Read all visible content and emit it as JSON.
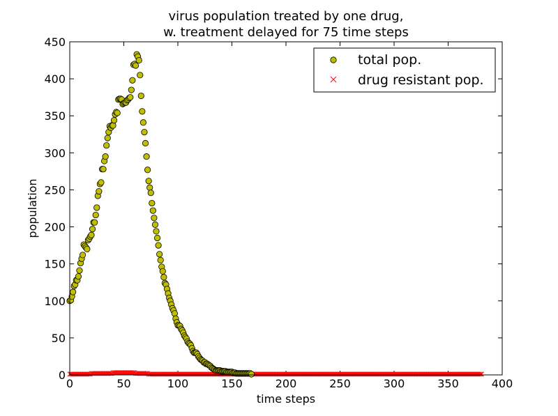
{
  "chart_data": {
    "type": "scatter",
    "title_line1": "virus population treated by one drug,",
    "title_line2": "w. treatment delayed for 75 time steps",
    "xlabel": "time steps",
    "ylabel": "population",
    "xlim": [
      0,
      400
    ],
    "ylim": [
      0,
      450
    ],
    "xticks": [
      "0",
      "50",
      "100",
      "150",
      "200",
      "250",
      "300",
      "350",
      "400"
    ],
    "yticks": [
      "0",
      "50",
      "100",
      "150",
      "200",
      "250",
      "300",
      "350",
      "400",
      "450"
    ],
    "grid": false,
    "legend_position": "top-right",
    "x_step": 1,
    "colors": {
      "total": "#bfbf00",
      "resistant": "#ff0000",
      "axes": "#000000"
    },
    "series": [
      {
        "name": "total pop.",
        "marker": "circle",
        "values": [
          100,
          101,
          106,
          112,
          120,
          122,
          128,
          128,
          133,
          141,
          151,
          157,
          162,
          176,
          174,
          172,
          170,
          182,
          184,
          187,
          189,
          197,
          206,
          206,
          216,
          226,
          242,
          248,
          258,
          260,
          278,
          278,
          289,
          295,
          310,
          320,
          328,
          336,
          334,
          337,
          337,
          344,
          352,
          355,
          354,
          372,
          373,
          373,
          372,
          366,
          367,
          368,
          368,
          371,
          372,
          374,
          375,
          385,
          398,
          419,
          420,
          418,
          433,
          430,
          425,
          405,
          377,
          356,
          341,
          328,
          313,
          295,
          277,
          262,
          253,
          246,
          232,
          222,
          212,
          203,
          194,
          185,
          175,
          163,
          155,
          146,
          140,
          132,
          124,
          122,
          116,
          110,
          104,
          100,
          95,
          90,
          87,
          83,
          76,
          71,
          67,
          67,
          66,
          62,
          60,
          57,
          53,
          51,
          49,
          45,
          43,
          42,
          40,
          36,
          32,
          30,
          30,
          30,
          28,
          25,
          23,
          21,
          20,
          19,
          17,
          17,
          15,
          15,
          14,
          13,
          12,
          10,
          9,
          8,
          7,
          6,
          6,
          6,
          6,
          6,
          5,
          5,
          5,
          5,
          5,
          4,
          4,
          4,
          4,
          4,
          4,
          3,
          3,
          3,
          2,
          2,
          2,
          2,
          2,
          2,
          2,
          2,
          2,
          2,
          2,
          2,
          2,
          2,
          1
        ]
      },
      {
        "name": "drug resistant pop.",
        "marker": "x",
        "values": [
          1,
          1,
          1,
          1,
          1,
          1,
          1,
          1,
          1,
          1,
          1,
          1,
          1,
          1,
          1,
          1,
          1,
          1,
          1,
          1,
          2,
          2,
          2,
          2,
          2,
          2,
          2,
          2,
          2,
          2,
          2,
          2,
          2,
          2,
          2,
          2,
          2,
          2,
          2,
          2,
          3,
          3,
          3,
          3,
          3,
          3,
          3,
          3,
          3,
          3,
          3,
          3,
          3,
          3,
          3,
          3,
          3,
          3,
          3,
          3,
          3,
          2,
          2,
          2,
          2,
          2,
          2,
          2,
          2,
          2,
          2,
          2,
          2,
          1,
          1,
          1,
          1,
          1,
          1,
          1,
          1,
          1,
          1,
          1,
          1,
          1,
          1,
          1,
          1,
          1,
          1,
          1,
          1,
          1,
          1,
          1,
          1,
          1,
          1,
          1,
          1,
          1,
          1,
          1,
          1,
          1,
          1,
          1,
          1,
          1,
          1,
          1,
          1,
          1,
          1,
          1,
          1,
          1,
          1,
          1,
          1,
          1,
          1,
          1,
          1,
          1,
          1,
          1,
          1,
          1,
          1,
          1,
          1,
          1,
          1,
          1,
          1,
          1,
          1,
          1,
          1,
          1,
          1,
          1,
          1,
          1,
          1,
          1,
          1,
          1,
          1,
          1,
          1,
          1,
          1,
          1,
          1,
          1,
          1,
          1,
          1,
          1,
          1,
          1,
          1,
          1,
          1,
          1,
          1,
          1,
          1,
          1,
          1,
          1,
          1,
          1,
          1,
          1,
          1,
          1,
          1,
          1,
          1,
          1,
          1,
          1,
          1,
          1,
          1,
          1,
          1,
          1,
          1,
          1,
          1,
          1,
          1,
          1,
          1,
          1,
          1,
          1,
          1,
          1,
          1,
          1,
          1,
          1,
          1,
          1,
          1,
          1,
          1,
          1,
          1,
          1,
          1,
          1,
          1,
          1,
          1,
          1,
          1,
          1,
          1,
          1,
          1,
          1,
          1,
          1,
          1,
          1,
          1,
          1,
          1,
          1,
          1,
          1,
          1,
          1,
          1,
          1,
          1,
          1,
          1,
          1,
          1,
          1,
          1,
          1,
          1,
          1,
          1,
          1,
          1,
          1,
          1,
          1,
          1,
          1,
          1,
          1,
          1,
          1,
          1,
          1,
          1,
          1,
          1,
          1,
          1,
          1,
          1,
          1,
          1,
          1,
          1,
          1,
          1,
          1,
          1,
          1,
          1,
          1,
          1,
          1,
          1,
          1,
          1,
          1,
          1,
          1,
          1,
          1,
          1,
          1,
          1,
          1,
          1,
          1,
          1,
          1,
          1,
          1,
          1,
          1,
          1,
          1,
          1,
          1,
          1,
          1,
          1,
          1,
          1,
          1,
          1,
          1,
          1,
          1,
          1,
          1,
          1,
          1,
          1,
          1,
          1,
          1,
          1,
          1,
          1,
          1,
          1,
          1,
          1,
          1,
          1,
          1,
          1,
          1,
          1,
          1,
          1,
          1,
          1,
          1,
          1,
          1,
          1,
          1,
          1,
          1,
          1,
          1,
          1,
          1,
          1,
          1,
          1,
          1,
          1,
          1,
          1,
          1,
          1,
          1,
          1,
          1,
          1,
          1,
          1,
          1,
          1,
          1,
          1,
          1,
          1,
          1,
          1,
          1,
          1,
          1
        ]
      }
    ]
  }
}
